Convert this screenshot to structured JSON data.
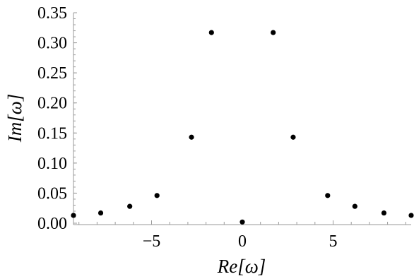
{
  "chart_data": {
    "type": "scatter",
    "title": "",
    "xlabel": "Re[ω]",
    "ylabel": "Im[ω]",
    "xlim": [
      -9.3,
      9.3
    ],
    "ylim": [
      0,
      0.35
    ],
    "xticks": [
      -5,
      0,
      5
    ],
    "xtick_labels": [
      "−5",
      "0",
      "5"
    ],
    "yticks": [
      0,
      0.05,
      0.1,
      0.15,
      0.2,
      0.25,
      0.3,
      0.35
    ],
    "ytick_labels": [
      "0.00",
      "0.05",
      "0.10",
      "0.15",
      "0.20",
      "0.25",
      "0.30",
      "0.35"
    ],
    "grid": false,
    "series": [
      {
        "marker_color": "#000000",
        "x": [
          -9.3,
          -7.8,
          -6.2,
          -4.7,
          -2.8,
          -1.7,
          0.0,
          1.7,
          2.8,
          4.7,
          6.2,
          7.8,
          9.3
        ],
        "y": [
          0.013,
          0.017,
          0.028,
          0.046,
          0.143,
          0.317,
          0.002,
          0.317,
          0.143,
          0.046,
          0.028,
          0.017,
          0.013
        ]
      }
    ]
  }
}
